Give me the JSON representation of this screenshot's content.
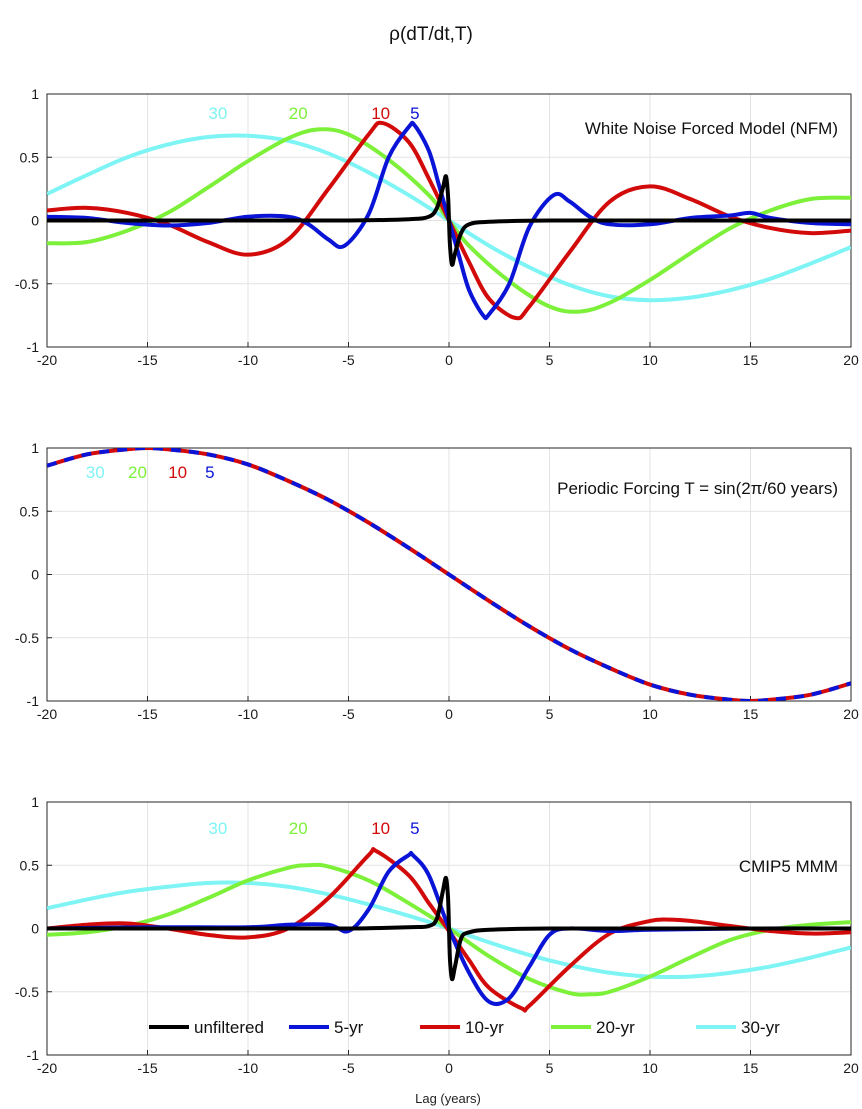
{
  "figure_title": "ρ(dT/dt,T)",
  "xlabel": "Lag (years)",
  "colors": {
    "unfiltered": "#000000",
    "5-yr": "#0a14d6",
    "10-yr": "#d20a0a",
    "20-yr": "#7df03a",
    "30-yr": "#7ff4f4"
  },
  "chart_data": [
    {
      "type": "line",
      "annotation": "White Noise Forced Model (NFM)",
      "xlim": [
        -20,
        20
      ],
      "ylim": [
        -1,
        1
      ],
      "xticks": [
        -20,
        -15,
        -10,
        -5,
        0,
        5,
        10,
        15,
        20
      ],
      "yticks": [
        -1,
        -0.5,
        0,
        0.5,
        1
      ],
      "ytick_labels": [
        "-1",
        "-0.5",
        "0",
        "0.5",
        "1"
      ],
      "grid": true,
      "lag_labels": [
        {
          "text": "30",
          "color": "#7ff4f4",
          "x": -11.5
        },
        {
          "text": "20",
          "color": "#7df03a",
          "x": -7.5
        },
        {
          "text": "10",
          "color": "#d20a0a",
          "x": -3.4
        },
        {
          "text": "5",
          "color": "#0a14d6",
          "x": -1.7
        }
      ],
      "series": [
        {
          "key": "30-yr",
          "color": "#7ff4f4",
          "x": [
            -20,
            -18,
            -16,
            -14,
            -12,
            -10,
            -8,
            -6,
            -4,
            -2,
            0,
            2,
            4,
            6,
            8,
            10,
            12,
            14,
            16,
            18,
            20
          ],
          "values": [
            0.21,
            0.36,
            0.5,
            0.6,
            0.66,
            0.67,
            0.63,
            0.53,
            0.38,
            0.2,
            0.0,
            -0.2,
            -0.37,
            -0.51,
            -0.6,
            -0.63,
            -0.61,
            -0.55,
            -0.46,
            -0.34,
            -0.21
          ]
        },
        {
          "key": "20-yr",
          "color": "#7df03a",
          "x": [
            -20,
            -18,
            -16,
            -14,
            -12,
            -10,
            -8,
            -6.5,
            -5,
            -3,
            -1,
            0,
            1,
            3,
            5,
            6.5,
            8,
            10,
            12,
            14,
            16,
            18,
            20
          ],
          "values": [
            -0.18,
            -0.17,
            -0.08,
            0.06,
            0.26,
            0.47,
            0.65,
            0.72,
            0.68,
            0.48,
            0.2,
            0.0,
            -0.2,
            -0.48,
            -0.68,
            -0.72,
            -0.65,
            -0.47,
            -0.26,
            -0.06,
            0.08,
            0.17,
            0.18
          ]
        },
        {
          "key": "10-yr",
          "color": "#d20a0a",
          "x": [
            -20,
            -18,
            -16,
            -14,
            -12,
            -10,
            -8,
            -6,
            -4,
            -3.3,
            -2,
            -1,
            0,
            1,
            2,
            3.3,
            4,
            6,
            8,
            10,
            12,
            14,
            16,
            18,
            20
          ],
          "values": [
            0.08,
            0.1,
            0.06,
            -0.03,
            -0.17,
            -0.27,
            -0.15,
            0.25,
            0.68,
            0.77,
            0.62,
            0.33,
            0.0,
            -0.33,
            -0.62,
            -0.77,
            -0.68,
            -0.25,
            0.15,
            0.27,
            0.17,
            0.03,
            -0.06,
            -0.1,
            -0.08
          ]
        },
        {
          "key": "5-yr",
          "color": "#0a14d6",
          "x": [
            -20,
            -18,
            -16,
            -14,
            -12,
            -10,
            -8,
            -7,
            -6,
            -5.2,
            -4,
            -3,
            -2,
            -1.7,
            -1,
            -0.5,
            0,
            0.5,
            1,
            1.7,
            2,
            3,
            4,
            5.2,
            6,
            7,
            8,
            10,
            12,
            14,
            15,
            16,
            18,
            20
          ],
          "values": [
            0.03,
            0.02,
            -0.02,
            -0.04,
            -0.02,
            0.03,
            0.03,
            -0.03,
            -0.15,
            -0.2,
            0.05,
            0.5,
            0.74,
            0.75,
            0.55,
            0.28,
            0.0,
            -0.28,
            -0.55,
            -0.75,
            -0.74,
            -0.5,
            -0.05,
            0.2,
            0.15,
            0.03,
            -0.03,
            -0.03,
            0.02,
            0.04,
            0.06,
            0.02,
            -0.02,
            -0.03
          ]
        },
        {
          "key": "unfiltered",
          "color": "#000000",
          "x": [
            -20,
            -15,
            -10,
            -5,
            -2,
            -1,
            -0.6,
            -0.3,
            -0.15,
            -0.05,
            0,
            0.05,
            0.15,
            0.3,
            0.6,
            1,
            2,
            5,
            10,
            15,
            20
          ],
          "values": [
            0.0,
            0.0,
            0.0,
            0.0,
            0.01,
            0.03,
            0.1,
            0.26,
            0.35,
            0.2,
            0.0,
            -0.2,
            -0.35,
            -0.26,
            -0.1,
            -0.03,
            -0.01,
            0.0,
            0.0,
            0.0,
            0.0
          ]
        }
      ]
    },
    {
      "type": "line",
      "annotation": "Periodic Forcing T = sin(2π/60 years)",
      "xlim": [
        -20,
        20
      ],
      "ylim": [
        -1,
        1
      ],
      "xticks": [
        -20,
        -15,
        -10,
        -5,
        0,
        5,
        10,
        15,
        20
      ],
      "yticks": [
        -1,
        -0.5,
        0,
        0.5,
        1
      ],
      "ytick_labels": [
        "-1",
        "-0.5",
        "0",
        "0.5",
        "1"
      ],
      "grid": true,
      "lag_labels": [
        {
          "text": "30",
          "color": "#7ff4f4",
          "x": -17.6
        },
        {
          "text": "20",
          "color": "#7df03a",
          "x": -15.5
        },
        {
          "text": "10",
          "color": "#d20a0a",
          "x": -13.5
        },
        {
          "text": "5",
          "color": "#0a14d6",
          "x": -11.9
        }
      ],
      "series": [
        {
          "key": "10-yr",
          "color": "#d20a0a",
          "dashed": false,
          "x": [
            -20,
            -18,
            -16,
            -15,
            -14,
            -12,
            -10,
            -8,
            -6,
            -4,
            -2,
            0,
            2,
            4,
            6,
            8,
            10,
            12,
            14,
            15,
            16,
            18,
            20
          ],
          "values": [
            0.86,
            0.95,
            0.99,
            1.0,
            0.99,
            0.95,
            0.87,
            0.74,
            0.59,
            0.41,
            0.21,
            0.0,
            -0.21,
            -0.41,
            -0.59,
            -0.74,
            -0.87,
            -0.95,
            -0.99,
            -1.0,
            -0.99,
            -0.95,
            -0.86
          ]
        },
        {
          "key": "5-yr",
          "color": "#0a14d6",
          "dashed": true,
          "x": [
            -20,
            -18,
            -16,
            -15,
            -14,
            -12,
            -10,
            -8,
            -6,
            -4,
            -2,
            0,
            2,
            4,
            6,
            8,
            10,
            12,
            14,
            15,
            16,
            18,
            20
          ],
          "values": [
            0.86,
            0.95,
            0.99,
            1.0,
            0.99,
            0.95,
            0.87,
            0.74,
            0.59,
            0.41,
            0.21,
            0.0,
            -0.21,
            -0.41,
            -0.59,
            -0.74,
            -0.87,
            -0.95,
            -0.99,
            -1.0,
            -0.99,
            -0.95,
            -0.86
          ]
        }
      ]
    },
    {
      "type": "line",
      "annotation": "CMIP5 MMM",
      "xlim": [
        -20,
        20
      ],
      "ylim": [
        -1,
        1
      ],
      "xticks": [
        -20,
        -15,
        -10,
        -5,
        0,
        5,
        10,
        15,
        20
      ],
      "yticks": [
        -1,
        -0.5,
        0,
        0.5,
        1
      ],
      "ytick_labels": [
        "-1",
        "-0.5",
        "0",
        "0.5",
        "1"
      ],
      "grid": true,
      "legend": {
        "position": "bottom",
        "entries": [
          "unfiltered",
          "5-yr",
          "10-yr",
          "20-yr",
          "30-yr"
        ]
      },
      "lag_labels": [
        {
          "text": "30",
          "color": "#7ff4f4",
          "x": -11.5
        },
        {
          "text": "20",
          "color": "#7df03a",
          "x": -7.5
        },
        {
          "text": "10",
          "color": "#d20a0a",
          "x": -3.4
        },
        {
          "text": "5",
          "color": "#0a14d6",
          "x": -1.7
        }
      ],
      "series": [
        {
          "key": "30-yr",
          "color": "#7ff4f4",
          "x": [
            -20,
            -18,
            -16,
            -14,
            -12,
            -10,
            -8,
            -6,
            -4,
            -2,
            0,
            2,
            4,
            6,
            8,
            10,
            12,
            14,
            16,
            18,
            20
          ],
          "values": [
            0.16,
            0.23,
            0.29,
            0.33,
            0.36,
            0.36,
            0.33,
            0.27,
            0.19,
            0.1,
            0.0,
            -0.11,
            -0.21,
            -0.29,
            -0.35,
            -0.38,
            -0.38,
            -0.35,
            -0.3,
            -0.23,
            -0.15
          ]
        },
        {
          "key": "20-yr",
          "color": "#7df03a",
          "x": [
            -20,
            -18,
            -16,
            -14,
            -12,
            -10,
            -8,
            -7,
            -6,
            -4,
            -2,
            0,
            2,
            4,
            6,
            7,
            8,
            10,
            12,
            14,
            16,
            18,
            20
          ],
          "values": [
            -0.05,
            -0.03,
            0.02,
            0.11,
            0.24,
            0.38,
            0.48,
            0.5,
            0.49,
            0.38,
            0.2,
            0.0,
            -0.22,
            -0.4,
            -0.51,
            -0.52,
            -0.5,
            -0.38,
            -0.23,
            -0.09,
            -0.01,
            0.03,
            0.05
          ]
        },
        {
          "key": "10-yr",
          "color": "#d20a0a",
          "x": [
            -20,
            -18,
            -16,
            -14,
            -12,
            -10,
            -8,
            -6,
            -4,
            -3.6,
            -2,
            -1,
            0,
            1,
            2,
            3.6,
            4,
            6,
            8,
            10,
            11,
            12,
            14,
            16,
            18,
            20
          ],
          "values": [
            0.0,
            0.03,
            0.04,
            0.0,
            -0.05,
            -0.07,
            0.0,
            0.24,
            0.58,
            0.61,
            0.42,
            0.2,
            -0.02,
            -0.25,
            -0.47,
            -0.63,
            -0.61,
            -0.3,
            -0.04,
            0.06,
            0.07,
            0.06,
            0.02,
            -0.02,
            -0.04,
            -0.03
          ]
        },
        {
          "key": "5-yr",
          "color": "#0a14d6",
          "x": [
            -20,
            -15,
            -10,
            -8,
            -6,
            -5,
            -4,
            -3,
            -2,
            -1.8,
            -1,
            0,
            1,
            2,
            3,
            4,
            5,
            6,
            8,
            10,
            15,
            20
          ],
          "values": [
            0.0,
            0.01,
            0.01,
            0.03,
            0.03,
            -0.02,
            0.15,
            0.45,
            0.58,
            0.58,
            0.42,
            0.0,
            -0.35,
            -0.58,
            -0.55,
            -0.3,
            -0.05,
            0.0,
            -0.02,
            -0.01,
            0.0,
            0.0
          ]
        },
        {
          "key": "unfiltered",
          "color": "#000000",
          "x": [
            -20,
            -15,
            -10,
            -5,
            -2,
            -1,
            -0.6,
            -0.3,
            -0.15,
            -0.05,
            0,
            0.05,
            0.15,
            0.3,
            0.6,
            1,
            2,
            5,
            10,
            15,
            20
          ],
          "values": [
            0.0,
            0.0,
            0.0,
            0.0,
            0.01,
            0.02,
            0.08,
            0.3,
            0.4,
            0.25,
            0.0,
            -0.25,
            -0.4,
            -0.3,
            -0.08,
            -0.03,
            -0.01,
            0.0,
            0.0,
            0.0,
            0.0
          ]
        }
      ]
    }
  ]
}
